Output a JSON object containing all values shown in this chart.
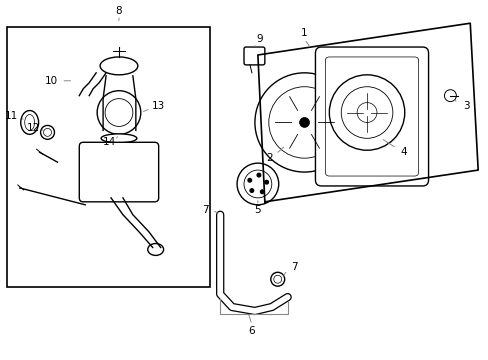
{
  "bg_color": "#ffffff",
  "line_color": "#000000",
  "gray_color": "#888888",
  "fig_width": 4.89,
  "fig_height": 3.6,
  "dpi": 100
}
